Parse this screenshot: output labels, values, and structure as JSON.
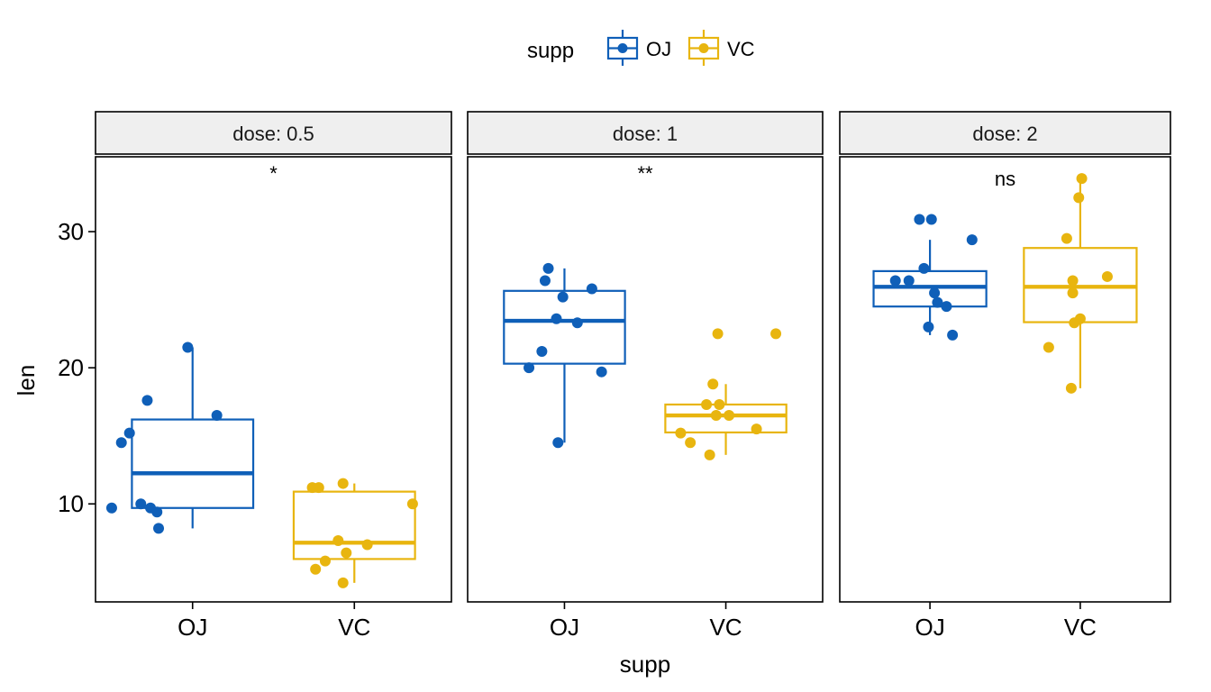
{
  "chart_data": {
    "type": "box",
    "xlabel": "supp",
    "ylabel": "len",
    "ylim": [
      2.8,
      35.5
    ],
    "y_ticks": [
      10,
      20,
      30
    ],
    "categories": [
      "OJ",
      "VC"
    ],
    "legend": {
      "title": "supp",
      "position": "top",
      "entries": [
        {
          "label": "OJ",
          "color": "#0f5fb8"
        },
        {
          "label": "VC",
          "color": "#e8b50f"
        }
      ]
    },
    "facets": [
      {
        "label": "dose: 0.5",
        "significance": "*",
        "boxes": [
          {
            "group": "OJ",
            "whisker_low": 8.2,
            "q1": 9.7,
            "median": 12.25,
            "q3": 16.2,
            "whisker_high": 21.5,
            "points": [
              [
                0.97,
                21.5
              ],
              [
                0.72,
                17.6
              ],
              [
                0.61,
                15.2
              ],
              [
                0.56,
                14.5
              ],
              [
                1.15,
                16.5
              ],
              [
                0.5,
                9.7
              ],
              [
                0.68,
                10.0
              ],
              [
                0.74,
                9.7
              ],
              [
                0.78,
                9.4
              ],
              [
                0.79,
                8.2
              ]
            ]
          },
          {
            "group": "VC",
            "whisker_low": 4.2,
            "q1": 5.95,
            "median": 7.15,
            "q3": 10.9,
            "whisker_high": 11.5,
            "points": [
              [
                0.93,
                11.5
              ],
              [
                0.78,
                11.2
              ],
              [
                0.74,
                11.2
              ],
              [
                1.36,
                10.0
              ],
              [
                0.9,
                7.3
              ],
              [
                1.08,
                7.0
              ],
              [
                0.95,
                6.4
              ],
              [
                0.82,
                5.8
              ],
              [
                0.76,
                5.2
              ],
              [
                0.93,
                4.2
              ]
            ]
          }
        ]
      },
      {
        "label": "dose: 1",
        "significance": "**",
        "boxes": [
          {
            "group": "OJ",
            "whisker_low": 14.5,
            "q1": 20.3,
            "median": 23.45,
            "q3": 25.65,
            "whisker_high": 27.3,
            "points": [
              [
                0.9,
                27.3
              ],
              [
                0.88,
                26.4
              ],
              [
                1.17,
                25.8
              ],
              [
                0.99,
                25.2
              ],
              [
                0.95,
                23.6
              ],
              [
                1.08,
                23.3
              ],
              [
                0.86,
                21.2
              ],
              [
                0.78,
                20.0
              ],
              [
                1.23,
                19.7
              ],
              [
                0.96,
                14.5
              ]
            ]
          },
          {
            "group": "VC",
            "whisker_low": 13.6,
            "q1": 15.25,
            "median": 16.5,
            "q3": 17.3,
            "whisker_high": 18.8,
            "points": [
              [
                0.95,
                22.5
              ],
              [
                1.31,
                22.5
              ],
              [
                0.92,
                18.8
              ],
              [
                0.88,
                17.3
              ],
              [
                0.96,
                17.3
              ],
              [
                0.94,
                16.5
              ],
              [
                1.02,
                16.5
              ],
              [
                1.19,
                15.5
              ],
              [
                0.72,
                15.2
              ],
              [
                0.78,
                14.5
              ],
              [
                0.9,
                13.6
              ]
            ]
          }
        ]
      },
      {
        "label": "dose: 2",
        "significance": "ns",
        "boxes": [
          {
            "group": "OJ",
            "whisker_low": 22.4,
            "q1": 24.5,
            "median": 25.95,
            "q3": 27.1,
            "whisker_high": 29.4,
            "points": [
              [
                0.93,
                30.9
              ],
              [
                1.01,
                30.9
              ],
              [
                1.28,
                29.4
              ],
              [
                0.96,
                27.3
              ],
              [
                0.77,
                26.4
              ],
              [
                0.86,
                26.4
              ],
              [
                1.03,
                25.5
              ],
              [
                1.05,
                24.8
              ],
              [
                1.11,
                24.5
              ],
              [
                0.99,
                23.0
              ],
              [
                1.15,
                22.4
              ]
            ]
          },
          {
            "group": "VC",
            "whisker_low": 18.5,
            "q1": 23.35,
            "median": 25.95,
            "q3": 28.8,
            "whisker_high": 33.9,
            "points": [
              [
                1.01,
                33.9
              ],
              [
                0.99,
                32.5
              ],
              [
                0.91,
                29.5
              ],
              [
                1.18,
                26.7
              ],
              [
                0.95,
                26.4
              ],
              [
                0.95,
                25.5
              ],
              [
                1.0,
                23.6
              ],
              [
                0.96,
                23.3
              ],
              [
                0.79,
                21.5
              ],
              [
                0.94,
                18.5
              ]
            ]
          }
        ]
      }
    ]
  }
}
